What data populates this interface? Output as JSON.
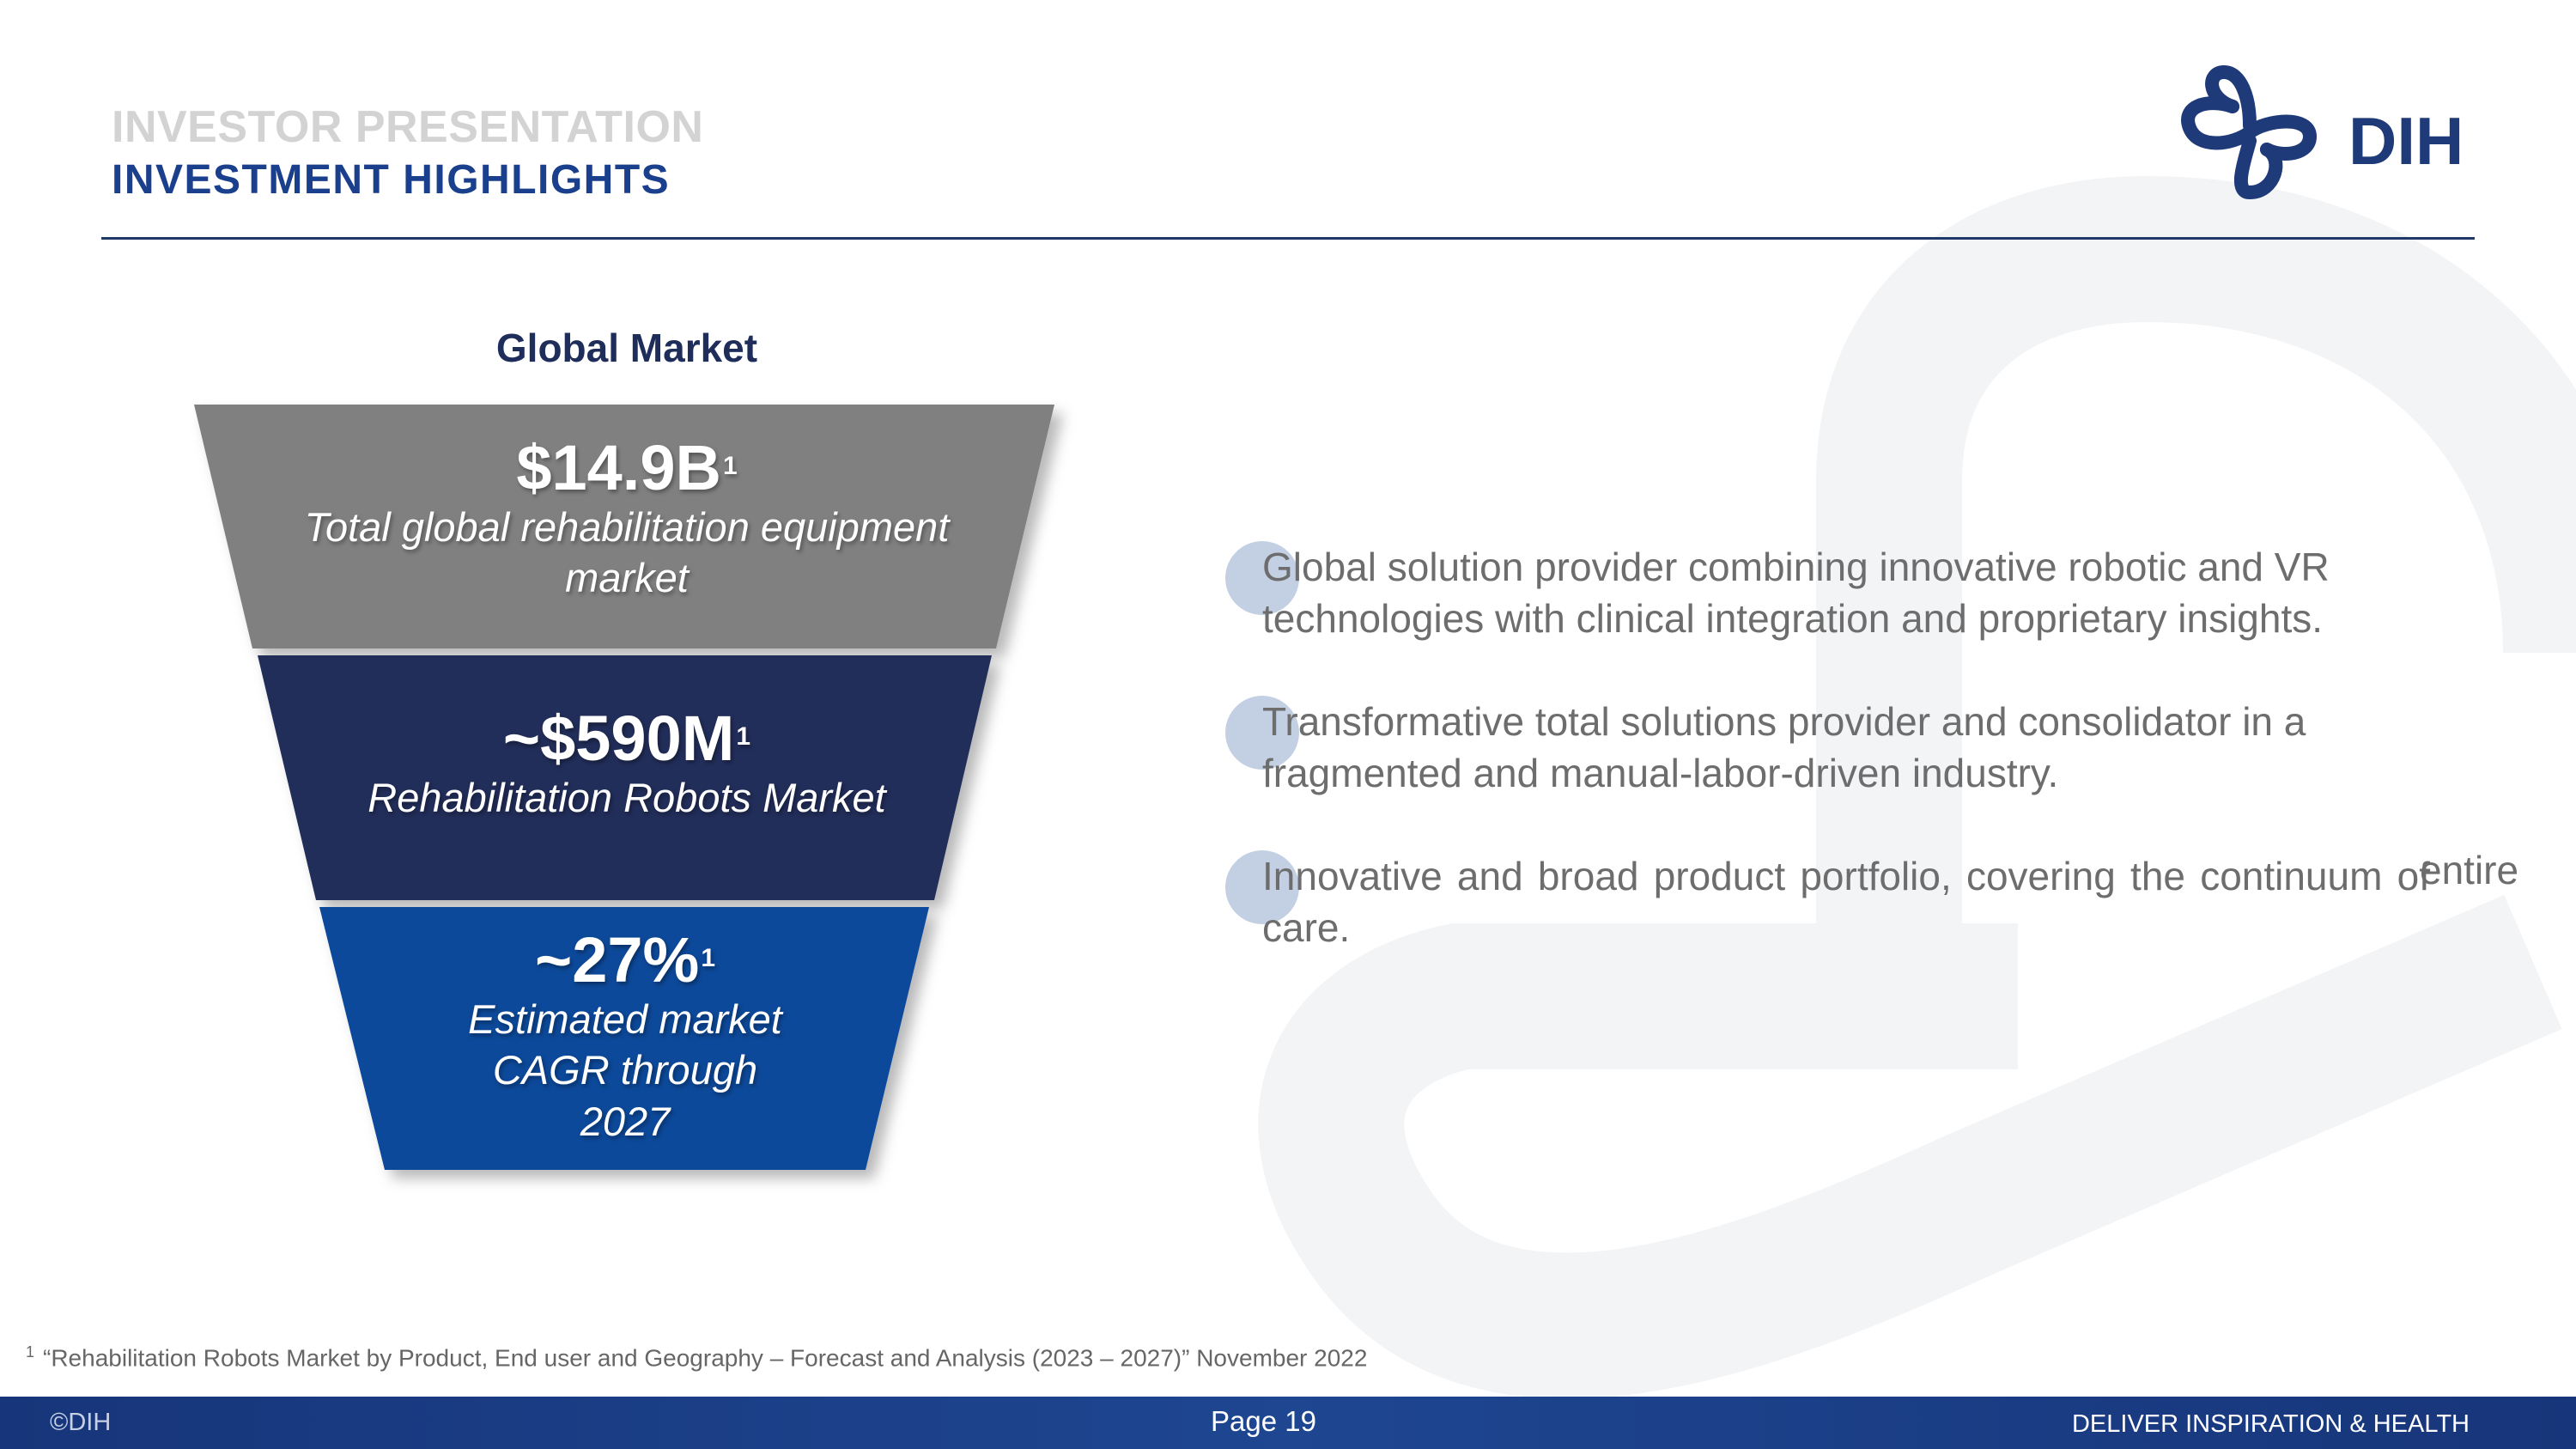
{
  "header": {
    "kicker": "INVESTOR PRESENTATION",
    "title": "INVESTMENT HIGHLIGHTS",
    "logo_text": "DIH",
    "logo_color": "#1f3a78"
  },
  "funnel": {
    "heading": "Global Market",
    "tiers": [
      {
        "value": "$14.9B",
        "note": "1",
        "label_lines": [
          "Total global rehabilitation equipment",
          "market"
        ],
        "color": "#808080"
      },
      {
        "value": "~$590M",
        "note": "1",
        "label_lines": [
          "Rehabilitation Robots Market"
        ],
        "color": "#222d5a"
      },
      {
        "value": "~27%",
        "note": "1",
        "label_lines": [
          "Estimated market",
          "CAGR through",
          "2027"
        ],
        "color": "#0a4a9a"
      }
    ]
  },
  "bullets": [
    {
      "text": "Global solution provider combining innovative robotic and VR technologies with clinical integration and proprietary insights."
    },
    {
      "text": "Transformative total solutions provider and consolidator in a fragmented and manual-labor-driven industry."
    },
    {
      "text": "Innovative and broad product portfolio, covering the continuum of care.",
      "extra": "entire"
    }
  ],
  "footnote": {
    "marker": "1",
    "text": "“Rehabilitation Robots Market by Product, End user and Geography – Forecast and Analysis (2023 – 2027)” November 2022"
  },
  "footer": {
    "copyright": "©DIH",
    "page": "Page 19",
    "tagline": "DELIVER INSPIRATION & HEALTH"
  },
  "colors": {
    "accent": "#1a3f8c",
    "footer": "#1e4691",
    "bullet_dot": "#c3d0e3",
    "body_text": "#6d6d6d"
  }
}
